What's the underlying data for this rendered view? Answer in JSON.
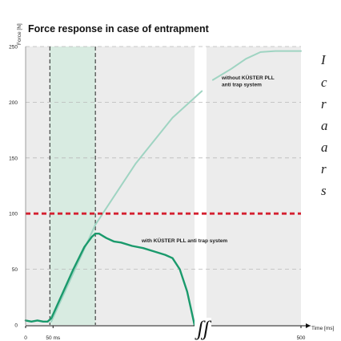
{
  "chart_data": {
    "type": "line",
    "title": "Force response in case of entrapment",
    "ylabel": "Force [N]",
    "xlabel": "Time [ms]",
    "ylim": [
      0,
      250
    ],
    "yticks": [
      0,
      50,
      100,
      150,
      200,
      250
    ],
    "xtick_labels": [
      "0",
      "50 ms",
      "500"
    ],
    "grid": true,
    "axis_break_symbol": "ʃʃ",
    "threshold": {
      "value": 100,
      "color": "#d42030"
    },
    "highlight_band": {
      "from_ms": 33,
      "to_ms": 95
    },
    "event_markers_ms": [
      33,
      95
    ],
    "series": [
      {
        "name": "without KÜSTER PLL anti trap system",
        "color": "#9fd4c2",
        "label_lines": [
          "without KÜSTER PLL",
          "anti trap system"
        ],
        "segments": [
          {
            "x": [
              35,
              95,
              150,
              200,
              240
            ],
            "y": [
              3,
              90,
              145,
              186,
              210
            ]
          },
          {
            "x": [
              255,
              280,
              300,
              320,
              340,
              375
            ],
            "y": [
              220,
              230,
              239,
              245,
              246,
              246
            ]
          }
        ]
      },
      {
        "name": "with KÜSTER PLL anti trap system",
        "color": "#1a9a6c",
        "label_lines": [
          "with KÜSTER PLL anti trap system"
        ],
        "segments": [
          {
            "x": [
              0,
              8,
              16,
              24,
              30,
              35,
              50,
              65,
              80,
              90,
              95,
              100,
              110,
              120,
              130,
              145,
              160,
              175,
              190,
              200,
              210,
              220,
              230
            ],
            "y": [
              4,
              3,
              4,
              3,
              3,
              6,
              28,
              50,
              70,
              79,
              82,
              82,
              78,
              75,
              74,
              71,
              69,
              66,
              63,
              60,
              50,
              30,
              0
            ]
          }
        ]
      }
    ]
  },
  "side_text": [
    "I",
    "c",
    "r",
    "a",
    "a",
    "r",
    "s"
  ]
}
